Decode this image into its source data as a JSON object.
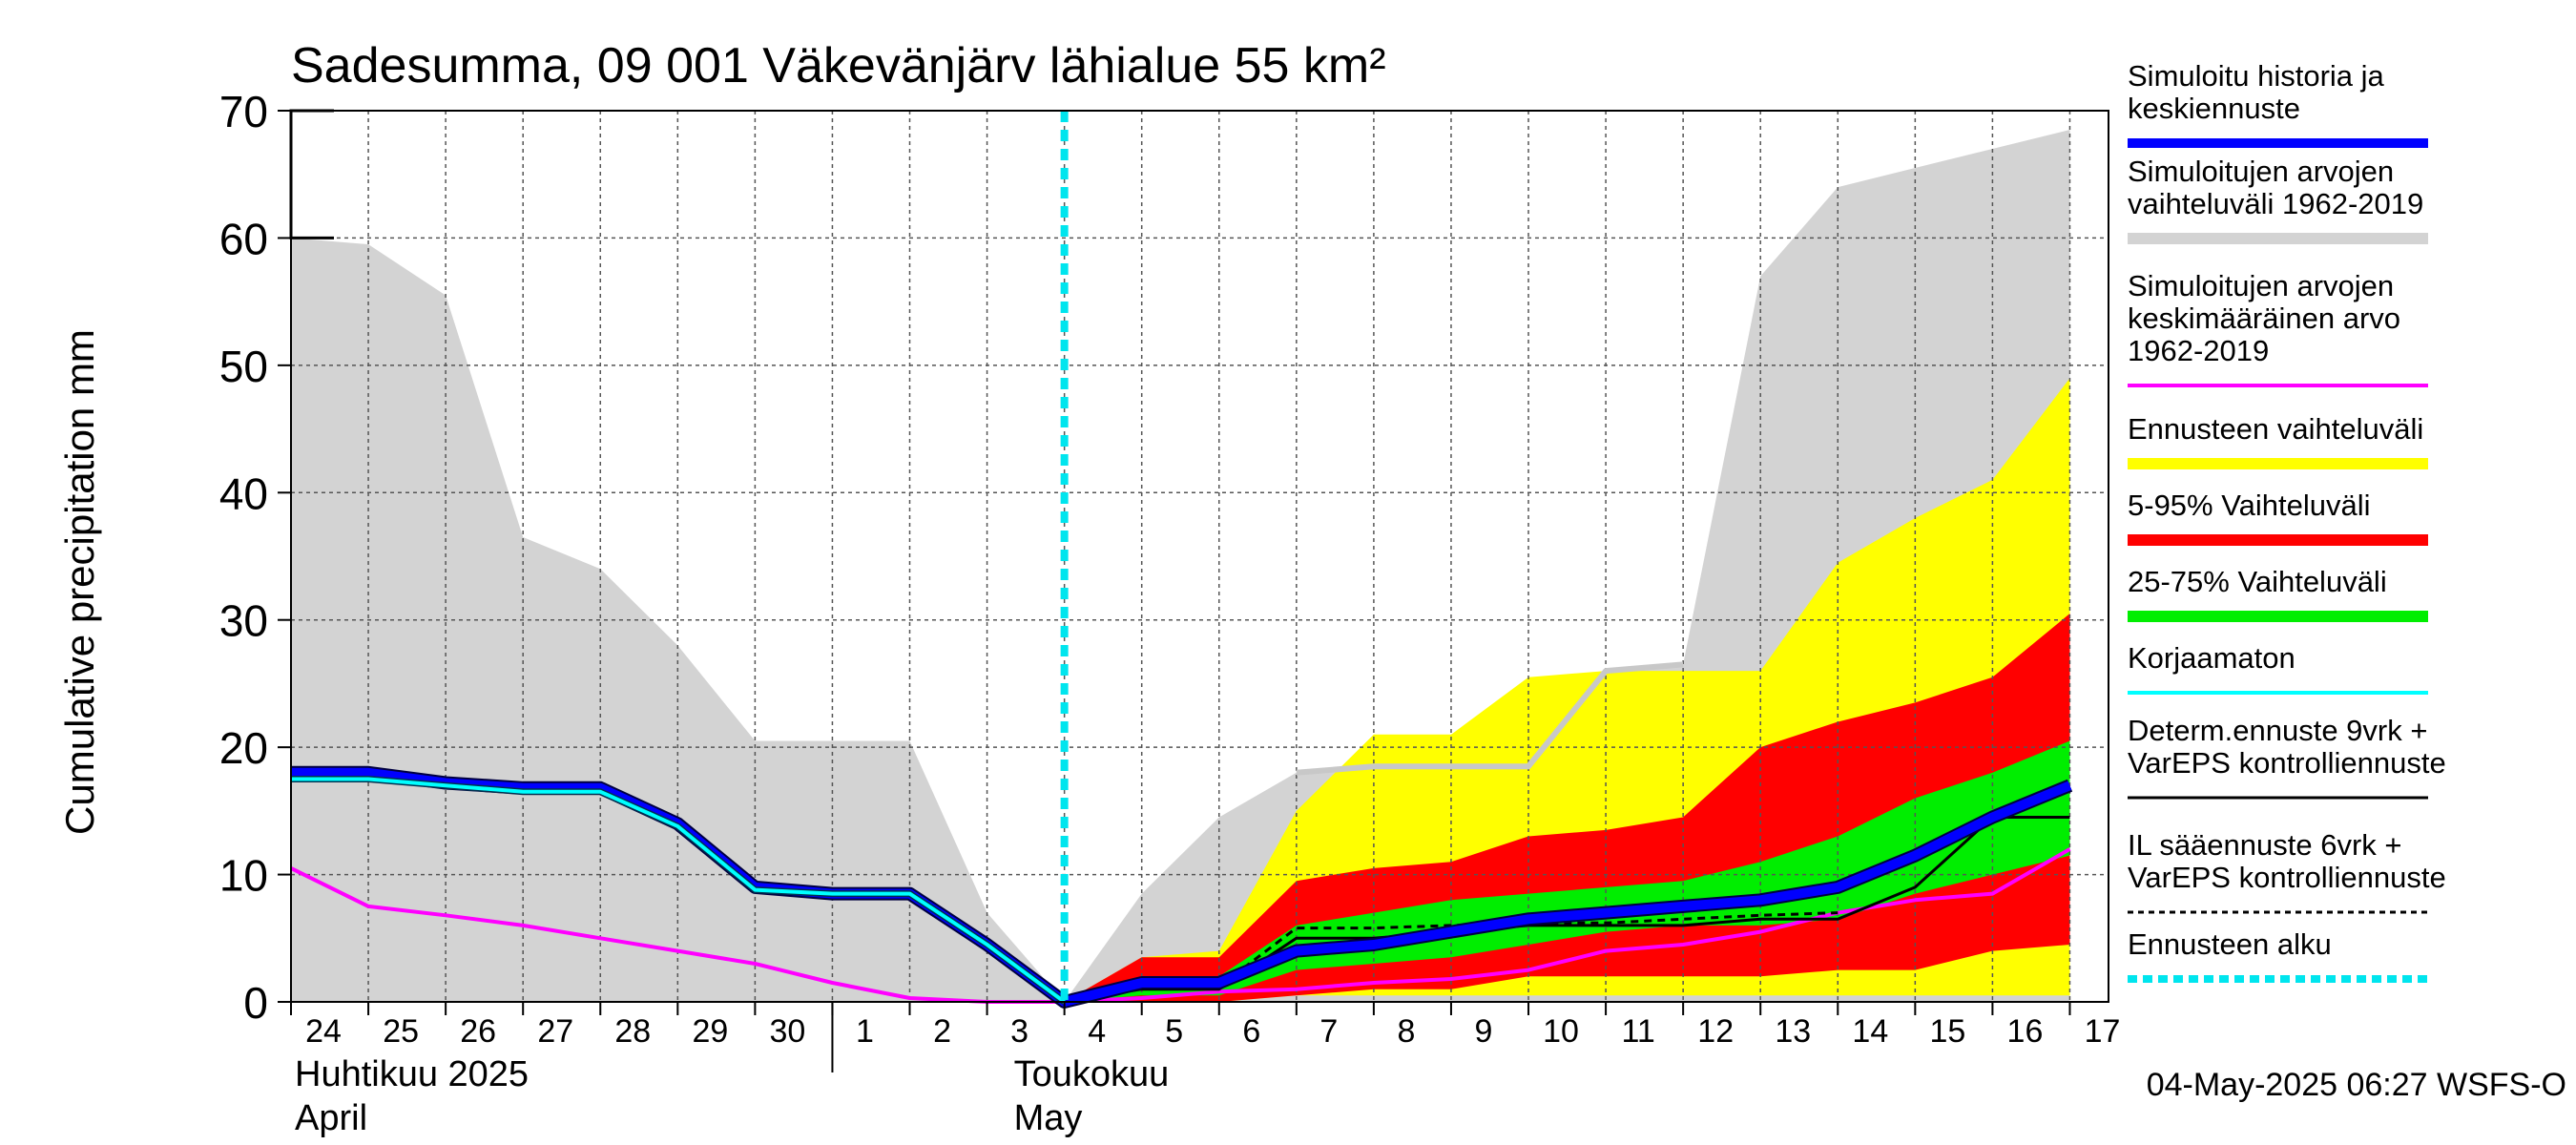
{
  "chart_data": {
    "type": "area",
    "title": "Sadesumma, 09 001 Väkevänjärv lähialue 55 km²",
    "ylabel": "Cumulative precipitation   mm",
    "ylim": [
      0,
      70
    ],
    "yticks": [
      0,
      10,
      20,
      30,
      40,
      50,
      60,
      70
    ],
    "x_start": "2025-04-24",
    "x_end": "2025-05-17",
    "xtick_labels": [
      "24",
      "25",
      "26",
      "27",
      "28",
      "29",
      "30",
      "1",
      "2",
      "3",
      "4",
      "5",
      "6",
      "7",
      "8",
      "9",
      "10",
      "11",
      "12",
      "13",
      "14",
      "15",
      "16",
      "17"
    ],
    "month_labels": [
      {
        "line1": "Huhtikuu  2025",
        "line2": "April"
      },
      {
        "line1": "Toukokuu",
        "line2": "May"
      }
    ],
    "forecast_start": "2025-05-04",
    "timestamp": "04-May-2025 06:27 WSFS-O",
    "colors": {
      "history_range": "#d3d3d3",
      "forecast_range": "#ffff00",
      "p5_95": "#ff0000",
      "p25_75": "#00ee00",
      "simulated": "#0000ff",
      "uncorrected": "#00ffff",
      "mean": "#ff00ff",
      "determ": "#000000",
      "forecast_start": "#00e5ee"
    },
    "history_range": {
      "x": [
        "2025-04-24",
        "2025-04-25",
        "2025-04-26",
        "2025-04-27",
        "2025-04-28",
        "2025-04-29",
        "2025-04-30",
        "2025-05-01",
        "2025-05-02",
        "2025-05-03",
        "2025-05-04",
        "2025-05-05",
        "2025-05-06",
        "2025-05-07",
        "2025-05-08",
        "2025-05-09",
        "2025-05-10",
        "2025-05-11",
        "2025-05-12",
        "2025-05-13",
        "2025-05-14",
        "2025-05-15",
        "2025-05-16",
        "2025-05-17"
      ],
      "upper": [
        60,
        59.5,
        55.5,
        36.5,
        34,
        28,
        20.5,
        20.5,
        20.5,
        7,
        0,
        8.5,
        14.5,
        18,
        18.5,
        18.5,
        18.5,
        26,
        26.5,
        57,
        64,
        65.5,
        67,
        68.5
      ],
      "lower": [
        0,
        0,
        0,
        0,
        0,
        0,
        0,
        0,
        0,
        0,
        0,
        0,
        0,
        0,
        0,
        0,
        0,
        0,
        0,
        0,
        0,
        0,
        0,
        0
      ]
    },
    "forecast_x": [
      "2025-05-04",
      "2025-05-05",
      "2025-05-06",
      "2025-05-07",
      "2025-05-08",
      "2025-05-09",
      "2025-05-10",
      "2025-05-11",
      "2025-05-12",
      "2025-05-13",
      "2025-05-14",
      "2025-05-15",
      "2025-05-16",
      "2025-05-17"
    ],
    "forecast_range": {
      "upper": [
        0,
        3.5,
        4,
        15,
        21,
        21,
        25.5,
        26,
        26,
        26,
        34.5,
        38,
        41,
        49
      ],
      "lower": [
        0,
        0,
        0,
        0.5,
        0.5,
        0.5,
        0.5,
        0.5,
        0.5,
        0.5,
        0.5,
        0.5,
        0.5,
        0.5
      ]
    },
    "p5_95": {
      "upper": [
        0,
        3.5,
        3.5,
        9.5,
        10.5,
        11,
        13,
        13.5,
        14.5,
        20,
        22,
        23.5,
        25.5,
        30.5
      ],
      "lower": [
        0,
        0,
        0,
        0.5,
        1,
        1,
        2,
        2,
        2,
        2,
        2.5,
        2.5,
        4,
        4.5
      ]
    },
    "p25_75": {
      "upper": [
        0,
        2,
        2,
        6,
        7,
        8,
        8.5,
        9,
        9.5,
        11,
        13,
        16,
        18,
        20.5
      ],
      "lower": [
        0,
        0.5,
        0.5,
        2.5,
        3,
        3.5,
        4.5,
        5.5,
        6,
        6,
        6.5,
        8.5,
        10,
        11.5
      ]
    },
    "series": [
      {
        "key": "simulated",
        "name": "Simuloitu historia ja keskiennuste",
        "x": [
          "2025-04-24",
          "2025-04-25",
          "2025-04-26",
          "2025-04-27",
          "2025-04-28",
          "2025-04-29",
          "2025-04-30",
          "2025-05-01",
          "2025-05-02",
          "2025-05-03",
          "2025-05-04",
          "2025-05-05",
          "2025-05-06",
          "2025-05-07",
          "2025-05-08",
          "2025-05-09",
          "2025-05-10",
          "2025-05-11",
          "2025-05-12",
          "2025-05-13",
          "2025-05-14",
          "2025-05-15",
          "2025-05-16",
          "2025-05-17"
        ],
        "values": [
          18,
          18,
          17.2,
          16.8,
          16.8,
          14,
          9,
          8.5,
          8.5,
          4.5,
          0,
          1.5,
          1.5,
          4,
          4.5,
          5.5,
          6.5,
          7,
          7.5,
          8,
          9,
          11.5,
          14.5,
          17
        ]
      },
      {
        "key": "uncorrected",
        "name": "Korjaamaton",
        "x": [
          "2025-04-24",
          "2025-04-25",
          "2025-04-26",
          "2025-04-27",
          "2025-04-28",
          "2025-04-29",
          "2025-04-30",
          "2025-05-01",
          "2025-05-02",
          "2025-05-03",
          "2025-05-04"
        ],
        "values": [
          17.5,
          17.5,
          17,
          16.5,
          16.5,
          13.8,
          8.8,
          8.5,
          8.5,
          4.5,
          0
        ]
      },
      {
        "key": "mean",
        "name": "Simuloitujen arvojen keskimääräinen arvo 1962-2019",
        "x": [
          "2025-04-24",
          "2025-04-25",
          "2025-04-26",
          "2025-04-27",
          "2025-04-28",
          "2025-04-29",
          "2025-04-30",
          "2025-05-01",
          "2025-05-02",
          "2025-05-03",
          "2025-05-04",
          "2025-05-05",
          "2025-05-06",
          "2025-05-07",
          "2025-05-08",
          "2025-05-09",
          "2025-05-10",
          "2025-05-11",
          "2025-05-12",
          "2025-05-13",
          "2025-05-14",
          "2025-05-15",
          "2025-05-16",
          "2025-05-17"
        ],
        "values": [
          10.5,
          7.5,
          6.8,
          6,
          5,
          4,
          3,
          1.5,
          0.3,
          0,
          0,
          0.3,
          0.8,
          1,
          1.5,
          1.8,
          2.5,
          4,
          4.5,
          5.5,
          7,
          8,
          8.5,
          12
        ]
      },
      {
        "key": "history_mean_grey",
        "name": "Simuloitujen arvojen vaihteluväli 1962-2019",
        "x": [
          "2025-05-07",
          "2025-05-08",
          "2025-05-09",
          "2025-05-10",
          "2025-05-11",
          "2025-05-12"
        ],
        "values": [
          18,
          18.5,
          18.5,
          18.5,
          26,
          26.5
        ]
      },
      {
        "key": "determ",
        "name": "Determ.ennuste 9vrk + VarEPS kontrolliennuste",
        "x": [
          "2025-05-04",
          "2025-05-05",
          "2025-05-06",
          "2025-05-07",
          "2025-05-08",
          "2025-05-09",
          "2025-05-10",
          "2025-05-11",
          "2025-05-12",
          "2025-05-13",
          "2025-05-14",
          "2025-05-15",
          "2025-05-16",
          "2025-05-17"
        ],
        "values": [
          0,
          1,
          1,
          5,
          5,
          5.5,
          6,
          6,
          6,
          6.5,
          6.5,
          9,
          14.5,
          14.5
        ]
      },
      {
        "key": "il",
        "name": "IL sääennuste 6vrk + VarEPS kontrolliennuste",
        "x": [
          "2025-05-04",
          "2025-05-05",
          "2025-05-06",
          "2025-05-07",
          "2025-05-08",
          "2025-05-09",
          "2025-05-10",
          "2025-05-11",
          "2025-05-12",
          "2025-05-13",
          "2025-05-14"
        ],
        "values": [
          0,
          1.2,
          1.2,
          5.8,
          5.8,
          6,
          6.2,
          6.2,
          6.5,
          6.8,
          7
        ]
      }
    ],
    "legend": [
      {
        "key": "simulated",
        "lines": [
          "Simuloitu historia ja",
          "keskiennuste"
        ],
        "color": "#0000ff",
        "width": 10,
        "dash": ""
      },
      {
        "key": "history",
        "lines": [
          "Simuloitujen arvojen",
          "vaihteluväli 1962-2019"
        ],
        "color": "#d3d3d3",
        "width": 12,
        "dash": ""
      },
      {
        "key": "mean",
        "lines": [
          "Simuloitujen arvojen",
          "keskimääräinen arvo",
          "   1962-2019"
        ],
        "color": "#ff00ff",
        "width": 4,
        "dash": ""
      },
      {
        "key": "forecast",
        "lines": [
          "Ennusteen vaihteluväli"
        ],
        "color": "#ffff00",
        "width": 12,
        "dash": ""
      },
      {
        "key": "p5_95",
        "lines": [
          "5-95% Vaihteluväli"
        ],
        "color": "#ff0000",
        "width": 12,
        "dash": ""
      },
      {
        "key": "p25_75",
        "lines": [
          "25-75% Vaihteluväli"
        ],
        "color": "#00ee00",
        "width": 12,
        "dash": ""
      },
      {
        "key": "uncorrected",
        "lines": [
          "Korjaamaton"
        ],
        "color": "#00ffff",
        "width": 4,
        "dash": ""
      },
      {
        "key": "determ",
        "lines": [
          "Determ.ennuste 9vrk +",
          "VarEPS kontrolliennuste"
        ],
        "color": "#000000",
        "width": 3,
        "dash": ""
      },
      {
        "key": "il",
        "lines": [
          "IL sääennuste 6vrk  +",
          "  VarEPS kontrolliennuste"
        ],
        "color": "#000000",
        "width": 3,
        "dash": "6,5"
      },
      {
        "key": "start",
        "lines": [
          "Ennusteen alku"
        ],
        "color": "#00e5ee",
        "width": 8,
        "dash": "10,6"
      }
    ]
  }
}
